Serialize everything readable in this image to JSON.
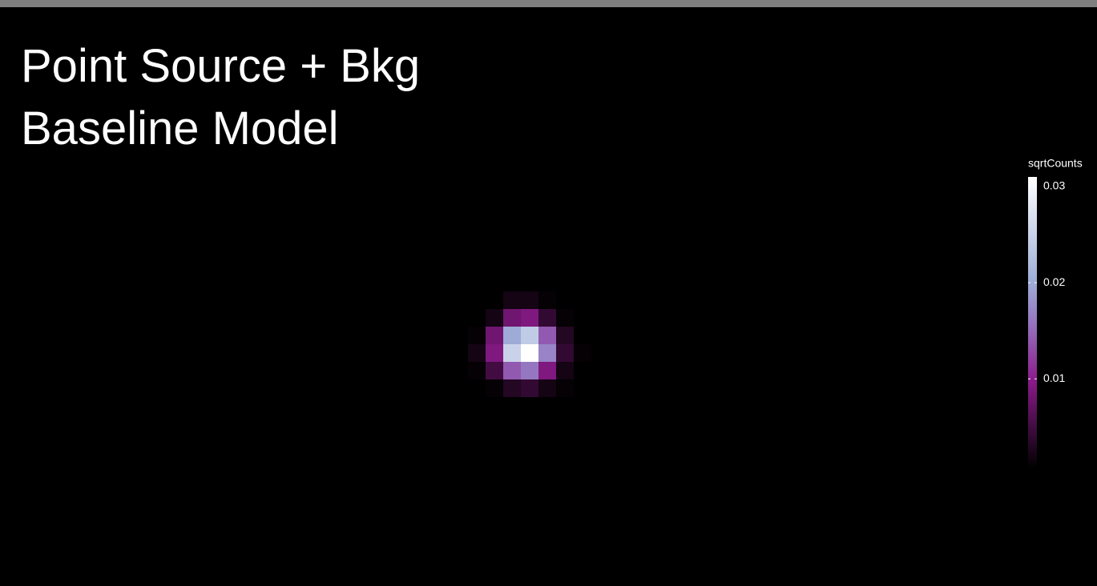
{
  "title": "Point Source + Bkg",
  "subtitle": "Baseline Model",
  "chart_data": {
    "type": "heatmap",
    "z": [
      [
        0,
        0,
        0.002,
        0.002,
        0.001,
        0,
        0
      ],
      [
        0,
        0.002,
        0.008,
        0.009,
        0.004,
        0.001,
        0
      ],
      [
        0.001,
        0.008,
        0.02,
        0.024,
        0.014,
        0.003,
        0
      ],
      [
        0.002,
        0.009,
        0.025,
        0.031,
        0.017,
        0.004,
        0.001
      ],
      [
        0.001,
        0.005,
        0.014,
        0.016,
        0.009,
        0.002,
        0
      ],
      [
        0,
        0.001,
        0.003,
        0.004,
        0.002,
        0.001,
        0
      ]
    ],
    "legend_title": "sqrtCounts",
    "zlim": [
      0.0007,
      0.031
    ],
    "zticks": [
      0.01,
      0.02,
      0.03
    ],
    "colorscale": [
      [
        0,
        "#000000"
      ],
      [
        0.3,
        "#8b1a8b"
      ],
      [
        0.5,
        "#9575c0"
      ],
      [
        0.65,
        "#9fb0d8"
      ],
      [
        1,
        "#ffffff"
      ]
    ]
  }
}
